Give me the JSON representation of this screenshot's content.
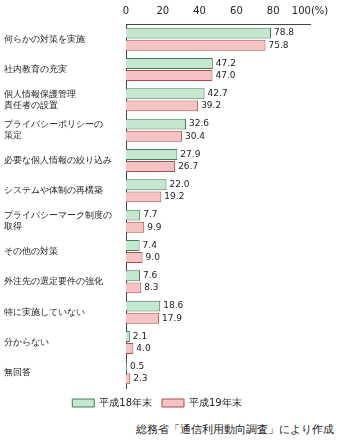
{
  "chart_data": {
    "type": "bar",
    "orientation": "horizontal",
    "categories": [
      "何らかの対策を実施",
      "社内教育の充実",
      "個人情報保護管理\n責任者の設置",
      "プライバシーポリシーの\n策定",
      "必要な個人情報の絞り込み",
      "システムや体制の再構築",
      "プライバシーマーク制度の\n取得",
      "その他の対策",
      "外注先の選定要件の強化",
      "特に実施していない",
      "分からない",
      "無回答"
    ],
    "series": [
      {
        "name": "平成18年末",
        "color": "#c5e6cf",
        "values": [
          78.8,
          47.2,
          42.7,
          32.6,
          27.9,
          22.0,
          7.7,
          7.4,
          7.6,
          18.6,
          2.1,
          0.5
        ],
        "value_labels": [
          "78.8",
          "47.2",
          "42.7",
          "32.6",
          "27.9",
          "22.0",
          "7.7",
          "7.4",
          "7.6",
          "18.6",
          "2.1",
          "0.5"
        ]
      },
      {
        "name": "平成19年末",
        "color": "#f6c3c3",
        "values": [
          75.8,
          47.0,
          39.2,
          30.4,
          26.7,
          19.2,
          9.9,
          9.0,
          8.3,
          17.9,
          4.0,
          2.3
        ],
        "value_labels": [
          "75.8",
          "47.0",
          "39.2",
          "30.4",
          "26.7",
          "19.2",
          "9.9",
          "9.0",
          "8.3",
          "17.9",
          "4.0",
          "2.3"
        ]
      }
    ],
    "xlim": [
      0,
      100
    ],
    "xticks": [
      0,
      20,
      40,
      60,
      80,
      {
        "value": 100,
        "label": "100(%)"
      }
    ],
    "grid": false,
    "legend": "bottom",
    "data_labels": true,
    "annotations": [
      "総務省「通信利用動向調査」により作成"
    ]
  }
}
